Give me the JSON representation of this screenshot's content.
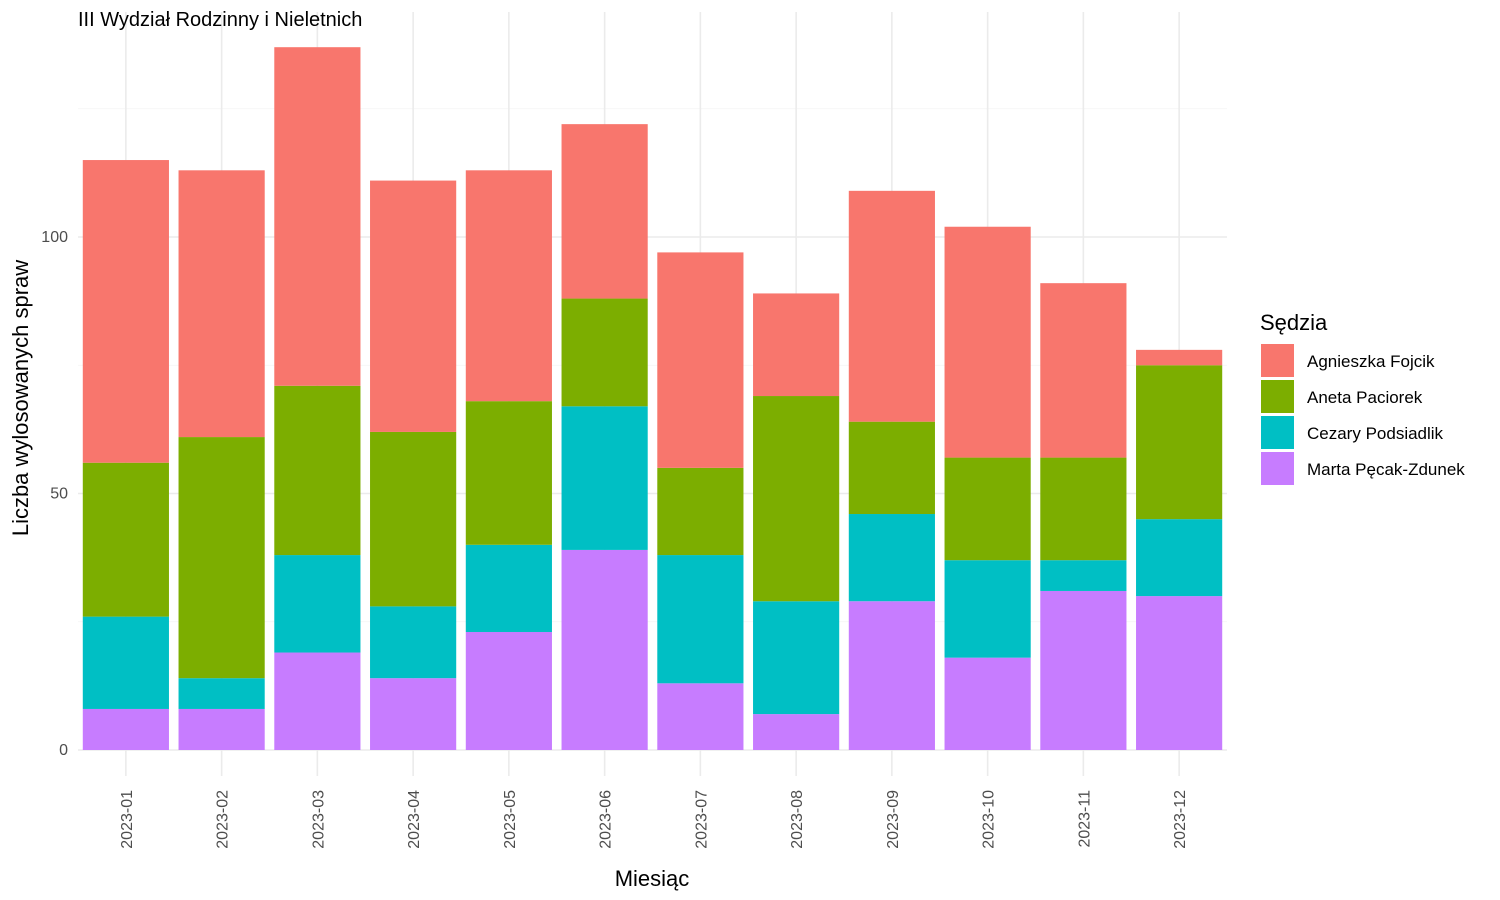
{
  "chart_data": {
    "type": "bar",
    "stacked": true,
    "title": "III Wydział Rodzinny i Nieletnich",
    "xlabel": "Miesiąc",
    "ylabel": "Liczba wylosowanych spraw",
    "ylim": [
      0,
      138
    ],
    "yticks": [
      0,
      50,
      100
    ],
    "grid": true,
    "legend": {
      "title": "Sędzia",
      "position": "right"
    },
    "categories": [
      "2023-01",
      "2023-02",
      "2023-03",
      "2023-04",
      "2023-05",
      "2023-06",
      "2023-07",
      "2023-08",
      "2023-09",
      "2023-10",
      "2023-11",
      "2023-12"
    ],
    "series": [
      {
        "name": "Marta Pęcak-Zdunek",
        "color": "#C77CFF",
        "values": [
          8,
          8,
          19,
          14,
          23,
          39,
          13,
          7,
          29,
          18,
          31,
          30
        ]
      },
      {
        "name": "Cezary Podsiadlik",
        "color": "#00BFC4",
        "values": [
          18,
          6,
          19,
          14,
          17,
          28,
          25,
          22,
          17,
          19,
          6,
          15
        ]
      },
      {
        "name": "Aneta Paciorek",
        "color": "#7CAE00",
        "values": [
          30,
          47,
          33,
          34,
          28,
          21,
          17,
          40,
          18,
          20,
          20,
          30
        ]
      },
      {
        "name": "Agnieszka Fojcik",
        "color": "#F8766D",
        "values": [
          59,
          52,
          66,
          49,
          45,
          34,
          42,
          20,
          45,
          45,
          34,
          3
        ]
      }
    ],
    "legend_order": [
      "Agnieszka Fojcik",
      "Aneta Paciorek",
      "Cezary Podsiadlik",
      "Marta Pęcak-Zdunek"
    ]
  }
}
